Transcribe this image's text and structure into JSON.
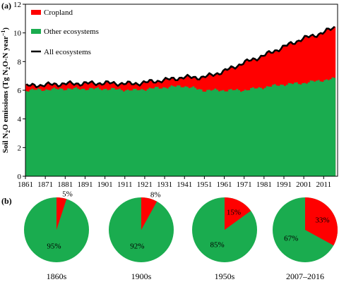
{
  "colors": {
    "cropland": "#ff0000",
    "other": "#1aac4f",
    "all": "#000000"
  },
  "panel_a": {
    "label": "(a)",
    "ylabel_parts": [
      "Soil N",
      "2",
      "O emissions (Tg N",
      "2",
      "O-N year",
      "−1",
      ")"
    ],
    "legend": [
      "Cropland",
      "Other ecosystems",
      "All ecosystems"
    ]
  },
  "panel_b": {
    "label": "(b)"
  },
  "chart_data": [
    {
      "type": "area",
      "stacked": true,
      "x_range": [
        1861,
        2016
      ],
      "xlim": [
        1861,
        2018
      ],
      "ylim": [
        0,
        12
      ],
      "xticks": [
        1861,
        1871,
        1881,
        1891,
        1901,
        1911,
        1921,
        1931,
        1941,
        1951,
        1961,
        1971,
        1981,
        1991,
        2001,
        2011
      ],
      "yticks": [
        0,
        2,
        4,
        6,
        8,
        10,
        12
      ],
      "ylabel": "Soil N2O emissions (Tg N2O-N year−1)",
      "legend_position": "top-left",
      "series": [
        {
          "name": "Other ecosystems",
          "keypoints": [
            [
              1861,
              6.0
            ],
            [
              1880,
              6.1
            ],
            [
              1900,
              6.1
            ],
            [
              1915,
              6.0
            ],
            [
              1930,
              6.2
            ],
            [
              1940,
              6.3
            ],
            [
              1950,
              6.0
            ],
            [
              1960,
              6.0
            ],
            [
              1970,
              6.0
            ],
            [
              1980,
              6.2
            ],
            [
              1990,
              6.4
            ],
            [
              2000,
              6.5
            ],
            [
              2010,
              6.7
            ],
            [
              2016,
              6.8
            ]
          ]
        },
        {
          "name": "Cropland",
          "keypoints": [
            [
              1861,
              0.3
            ],
            [
              1880,
              0.35
            ],
            [
              1900,
              0.4
            ],
            [
              1915,
              0.45
            ],
            [
              1930,
              0.5
            ],
            [
              1940,
              0.6
            ],
            [
              1950,
              0.9
            ],
            [
              1960,
              1.3
            ],
            [
              1970,
              1.9
            ],
            [
              1980,
              2.2
            ],
            [
              1990,
              2.6
            ],
            [
              2000,
              3.1
            ],
            [
              2010,
              3.3
            ],
            [
              2016,
              3.6
            ]
          ]
        },
        {
          "name": "All ecosystems",
          "keypoints": [
            [
              1861,
              6.3
            ],
            [
              1880,
              6.45
            ],
            [
              1900,
              6.5
            ],
            [
              1915,
              6.45
            ],
            [
              1930,
              6.7
            ],
            [
              1940,
              6.9
            ],
            [
              1950,
              6.9
            ],
            [
              1960,
              7.3
            ],
            [
              1970,
              7.9
            ],
            [
              1980,
              8.4
            ],
            [
              1990,
              9.0
            ],
            [
              2000,
              9.6
            ],
            [
              2010,
              10.0
            ],
            [
              2016,
              10.4
            ]
          ]
        }
      ]
    },
    {
      "type": "pie",
      "charts": [
        {
          "period": "1860s",
          "cropland": 5,
          "other": 95
        },
        {
          "period": "1900s",
          "cropland": 8,
          "other": 92
        },
        {
          "period": "1950s",
          "cropland": 15,
          "other": 85
        },
        {
          "period": "2007–2016",
          "cropland": 33,
          "other": 67
        }
      ]
    }
  ]
}
